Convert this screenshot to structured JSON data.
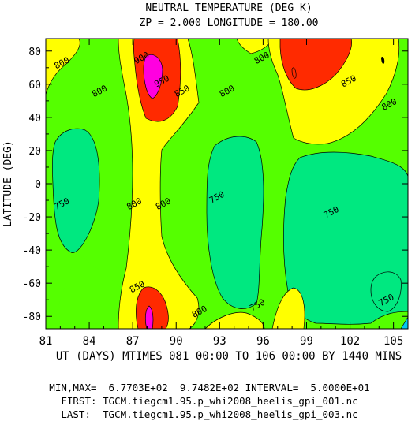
{
  "chart_data": {
    "type": "contour",
    "title": "NEUTRAL TEMPERATURE (DEG K)",
    "subtitle": "ZP =     2.000 LONGITUDE =     180.00",
    "xlabel": "UT (DAYS) MTIMES 081 00:00 TO 106 00:00 BY 1440 MINS",
    "ylabel": "LATITUDE (DEG)",
    "xlim": [
      81,
      106
    ],
    "ylim": [
      -87.5,
      87.5
    ],
    "x_ticks": [
      "81",
      "84",
      "87",
      "90",
      "93",
      "96",
      "99",
      "102",
      "105"
    ],
    "y_ticks": [
      "80",
      "60",
      "40",
      "20",
      "0",
      "-20",
      "-40",
      "-60",
      "-80"
    ],
    "levels": [
      700,
      750,
      800,
      850,
      900,
      950
    ],
    "colors": {
      "700": "#00c8f0",
      "750": "#00e880",
      "800": "#55ff00",
      "850": "#ffff00",
      "900": "#ff2a00",
      "950": "#ff00e0"
    },
    "contour_labels": [
      {
        "text": "800",
        "x": 82.1,
        "y": 73
      },
      {
        "text": "800",
        "x": 84.7,
        "y": 56
      },
      {
        "text": "900",
        "x": 87.6,
        "y": 76
      },
      {
        "text": "950",
        "x": 89.0,
        "y": 62
      },
      {
        "text": "850",
        "x": 90.4,
        "y": 56
      },
      {
        "text": "800",
        "x": 93.5,
        "y": 56
      },
      {
        "text": "800",
        "x": 95.9,
        "y": 76
      },
      {
        "text": "850",
        "x": 101.9,
        "y": 62
      },
      {
        "text": "800",
        "x": 104.7,
        "y": 48
      },
      {
        "text": "750",
        "x": 82.1,
        "y": -12
      },
      {
        "text": "800",
        "x": 87.1,
        "y": -12
      },
      {
        "text": "800",
        "x": 89.1,
        "y": -12
      },
      {
        "text": "750",
        "x": 92.8,
        "y": -8
      },
      {
        "text": "750",
        "x": 100.7,
        "y": -17
      },
      {
        "text": "850",
        "x": 87.3,
        "y": -62
      },
      {
        "text": "800",
        "x": 91.6,
        "y": -77
      },
      {
        "text": "750",
        "x": 95.6,
        "y": -73
      },
      {
        "text": "750",
        "x": 104.5,
        "y": -70
      }
    ]
  },
  "footer": {
    "minmax": "MIN,MAX=  6.7703E+02  9.7482E+02 INTERVAL=  5.0000E+01",
    "first": "FIRST: TGCM.tiegcm1.95.p_whi2008_heelis_gpi_001.nc",
    "last": "LAST:  TGCM.tiegcm1.95.p_whi2008_heelis_gpi_003.nc"
  }
}
